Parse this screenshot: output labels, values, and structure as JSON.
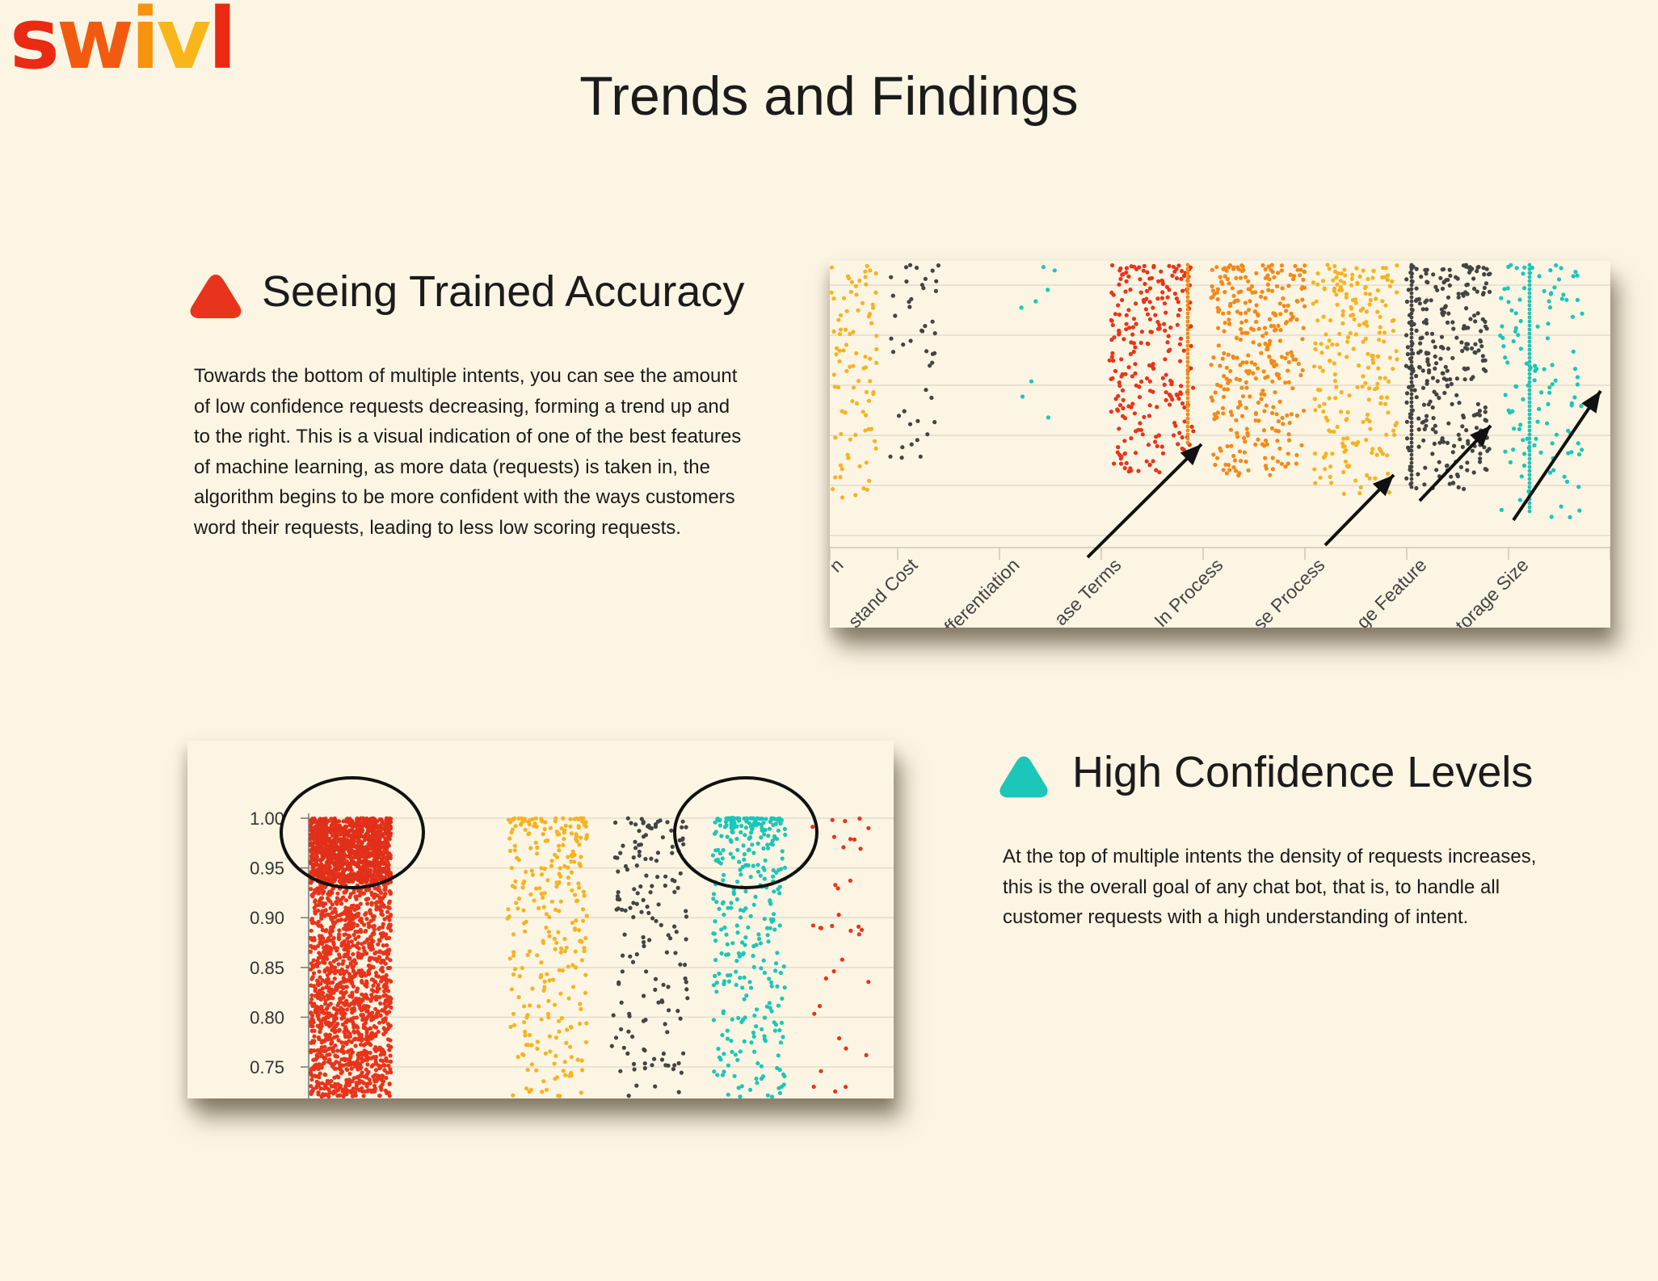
{
  "brand": {
    "logo_text": "swivl"
  },
  "page": {
    "title": "Trends and Findings"
  },
  "colors": {
    "red": "#e8341c",
    "orange": "#f28a1a",
    "yellow": "#f5b323",
    "dark": "#444444",
    "teal": "#1cc6b8"
  },
  "section_accuracy": {
    "heading": "Seeing Trained Accuracy",
    "icon": "triangle-icon",
    "icon_color": "#e8341c",
    "body": "Towards the bottom of multiple intents, you can see the amount of low confidence requests decreasing, forming a trend up and to the right. This is a visual indication of one of the best features of machine learning, as more data (requests) is taken in, the algorithm begins to be more confident with the ways customers word their requests, leading to less low scoring requests.",
    "chart_data": {
      "type": "scatter",
      "categories": [
        "n",
        "stand Cost",
        "fferentiation",
        "ase Terms",
        "In Process",
        "se Process",
        "ge Feature",
        "torage Size"
      ],
      "series_colors": [
        "#f5b323",
        "#444444",
        "#1cc6b8",
        "#e8341c",
        "#f28a1a",
        "#f5b323",
        "#444444",
        "#1cc6b8"
      ],
      "grid": true,
      "annotations": [
        "arrow",
        "arrow",
        "arrow",
        "arrow"
      ]
    }
  },
  "section_confidence": {
    "heading": "High Confidence Levels",
    "icon": "triangle-icon",
    "icon_color": "#1cc6b8",
    "body": "At the top of multiple intents the density of requests increases, this is the overall goal of any chat bot, that is, to handle all customer requests with a high understanding of intent.",
    "chart_data": {
      "type": "scatter",
      "y_ticks": [
        "1.00",
        "0.95",
        "0.90",
        "0.85",
        "0.80",
        "0.75"
      ],
      "ylim": [
        0.72,
        1.0
      ],
      "series_colors": [
        "#e8341c",
        "#f5b323",
        "#444444",
        "#1cc6b8",
        "#e8341c"
      ],
      "grid": true,
      "annotations": [
        "circle",
        "circle"
      ]
    }
  }
}
